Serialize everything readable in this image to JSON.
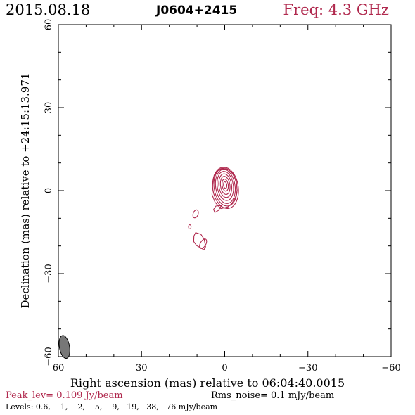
{
  "chart_data": {
    "type": "contour",
    "header": {
      "date": "2015.08.18",
      "source": "J0604+2415",
      "freq": "Freq: 4.3 GHz"
    },
    "xlabel": "Right ascension (mas) relative to 06:04:40.0015",
    "ylabel": "Declination (mas) relative to +24:15:13.971",
    "xlim": [
      60,
      -60
    ],
    "ylim": [
      -60,
      60
    ],
    "xticks": [
      60,
      30,
      0,
      -30,
      -60
    ],
    "yticks": [
      -60,
      -30,
      0,
      30,
      60
    ],
    "xtick_labels": [
      "60",
      "30",
      "0",
      "−30",
      "−60"
    ],
    "ytick_labels": [
      "−60",
      "−30",
      "0",
      "30",
      "60"
    ],
    "footer": {
      "peak": "Peak_lev=  0.109 Jy/beam",
      "rms": "Rms_noise=  0.1 mJy/beam",
      "levels": "Levels: 0.6,    1,    2,    5,    9,   19,   38,   76 mJy/beam"
    },
    "levels_mjy": [
      0.6,
      1,
      2,
      5,
      9,
      19,
      38,
      76
    ],
    "beam": {
      "x": 57.8,
      "y": -56.5,
      "major": 4.2,
      "minor": 2.2,
      "pa_deg": -10
    },
    "contours": {
      "core": {
        "center": [
          -0.3,
          1.0
        ],
        "levels": [
          {
            "rx": 4.6,
            "ry": 7.5,
            "rot": -8,
            "dy": 0.0
          },
          {
            "rx": 4.1,
            "ry": 6.9,
            "rot": -8,
            "dy": 0.3
          },
          {
            "rx": 3.5,
            "ry": 6.2,
            "rot": -8,
            "dy": 0.5
          },
          {
            "rx": 2.9,
            "ry": 5.3,
            "rot": -8,
            "dy": 0.7
          },
          {
            "rx": 2.3,
            "ry": 4.3,
            "rot": -8,
            "dy": 0.8
          },
          {
            "rx": 1.7,
            "ry": 3.3,
            "rot": -8,
            "dy": 0.9
          },
          {
            "rx": 1.1,
            "ry": 2.2,
            "rot": -8,
            "dy": 1.0
          },
          {
            "rx": 0.6,
            "ry": 1.2,
            "rot": -8,
            "dy": 1.0
          }
        ]
      },
      "tail": [
        [
          3.2,
          -5.6
        ],
        [
          4.0,
          -6.8
        ],
        [
          3.6,
          -7.9
        ],
        [
          2.3,
          -7.2
        ],
        [
          1.2,
          -5.4
        ]
      ],
      "outer_extent": [
        [
          1.4,
          -6.5
        ],
        [
          3.5,
          -4.2
        ],
        [
          4.6,
          -1.4
        ],
        [
          4.4,
          2.0
        ],
        [
          3.8,
          5.6
        ],
        [
          2.4,
          7.4
        ],
        [
          0.7,
          7.9
        ],
        [
          -1.2,
          7.6
        ],
        [
          -3.0,
          6.2
        ],
        [
          -4.2,
          3.4
        ],
        [
          -4.5,
          0.0
        ],
        [
          -3.8,
          -2.6
        ],
        [
          -2.6,
          -4.6
        ],
        [
          -1.2,
          -5.9
        ]
      ],
      "components": [
        {
          "center": [
            10.5,
            -8.4
          ],
          "rx": 0.9,
          "ry": 1.5,
          "rot": 20
        },
        {
          "center": [
            12.6,
            -13.1
          ],
          "rx": 0.45,
          "ry": 0.75,
          "rot": 0
        },
        {
          "center": [
            7.8,
            -19.2
          ],
          "rx": 1.0,
          "ry": 1.9,
          "rot": 30
        }
      ],
      "blob_outer": [
        [
          10.5,
          -15.2
        ],
        [
          8.6,
          -15.8
        ],
        [
          7.4,
          -17.6
        ],
        [
          6.9,
          -20.3
        ],
        [
          7.5,
          -21.4
        ],
        [
          8.8,
          -20.6
        ],
        [
          10.1,
          -19.9
        ],
        [
          11.2,
          -18.4
        ],
        [
          11.1,
          -16.4
        ]
      ]
    },
    "colors": {
      "contour": "#b0294e",
      "axis": "#000000",
      "beam_fill": "#777777"
    }
  }
}
